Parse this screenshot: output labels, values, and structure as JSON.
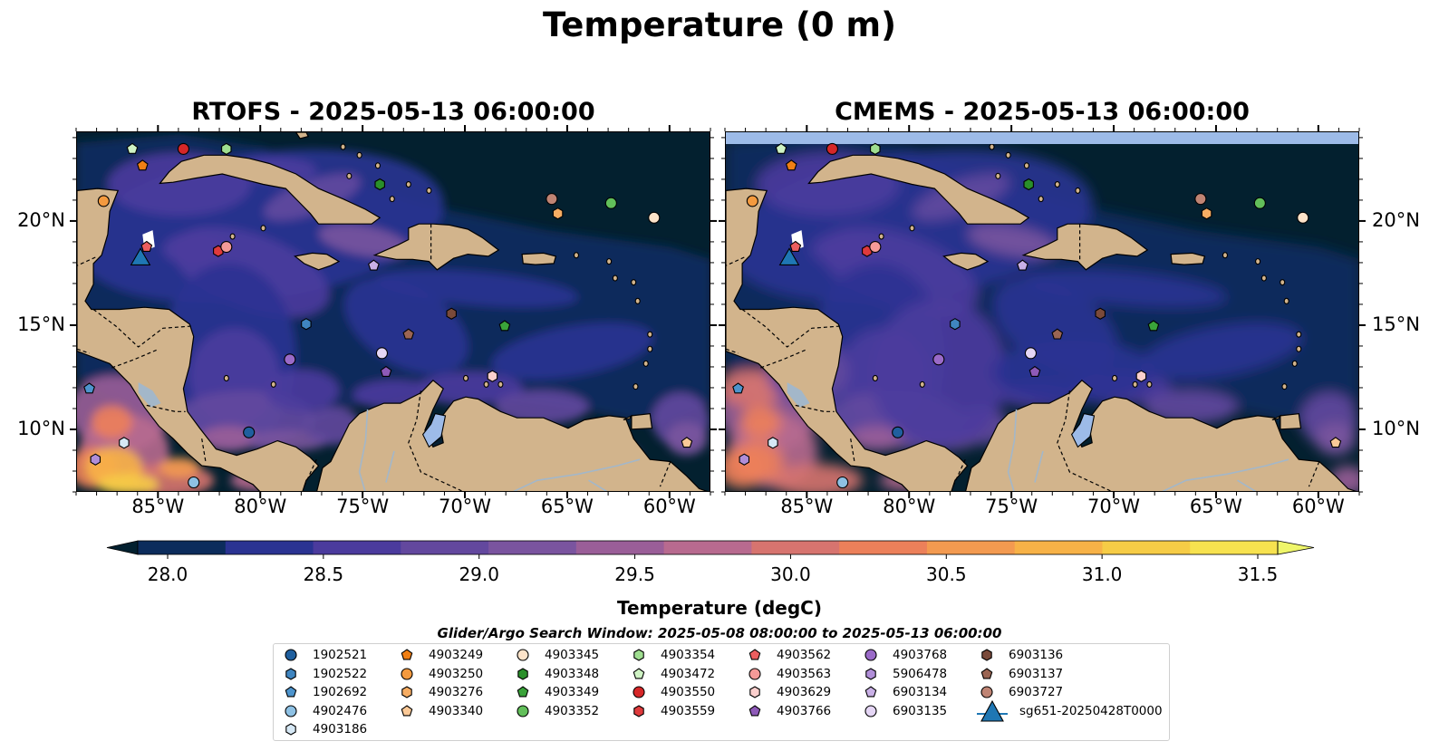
{
  "figure": {
    "title": "Temperature (0 m)",
    "panels": [
      {
        "title": "RTOFS - 2025-05-13 06:00:00"
      },
      {
        "title": "CMEMS - 2025-05-13 06:00:00"
      }
    ],
    "lon_ticks": [
      "85°W",
      "80°W",
      "75°W",
      "70°W",
      "65°W",
      "60°W"
    ],
    "lat_ticks": [
      "20°N",
      "15°N",
      "10°N"
    ],
    "extent": {
      "lon": [
        -89,
        -58
      ],
      "lat": [
        7,
        24.3
      ]
    },
    "colorbar": {
      "title": "Temperature (degC)",
      "ticks": [
        "28.0",
        "28.5",
        "29.0",
        "29.5",
        "30.0",
        "30.5",
        "31.0",
        "31.5"
      ],
      "range": [
        28.0,
        31.5
      ],
      "extend": "both",
      "colors": [
        "#03202f",
        "#0c2c5c",
        "#2a3392",
        "#4b3b9d",
        "#63489e",
        "#7a549f",
        "#9a5e98",
        "#b86a8f",
        "#d7746f",
        "#ec805a",
        "#f39a50",
        "#f7b247",
        "#f6cc46",
        "#f7e24f",
        "#eff66a"
      ]
    },
    "search_window": "Glider/Argo Search Window: 2025-05-08 08:00:00 to 2025-05-13 06:00:00",
    "colors": {
      "land": "#d2b48c",
      "lakes": "#9dbbe8",
      "rivers": "#a3b7c9",
      "deep": "#03202f"
    },
    "legend_items": [
      {
        "label": "1902521",
        "marker": "circle",
        "color": "#1f5f9e"
      },
      {
        "label": "1902522",
        "marker": "hexagon",
        "color": "#3f85c0"
      },
      {
        "label": "1902692",
        "marker": "pentagon",
        "color": "#4d94cd"
      },
      {
        "label": "4902476",
        "marker": "circle",
        "color": "#8ec1e4"
      },
      {
        "label": "4903186",
        "marker": "hexagon",
        "color": "#d6e8f5"
      },
      {
        "label": "4903249",
        "marker": "pentagon",
        "color": "#f07f14"
      },
      {
        "label": "4903250",
        "marker": "circle",
        "color": "#f49a3f"
      },
      {
        "label": "4903276",
        "marker": "hexagon",
        "color": "#f7ad63"
      },
      {
        "label": "4903340",
        "marker": "pentagon",
        "color": "#fbc997"
      },
      {
        "label": "4903345",
        "marker": "circle",
        "color": "#fde3c9"
      },
      {
        "label": "4903348",
        "marker": "hexagon",
        "color": "#2a8f2a"
      },
      {
        "label": "4903349",
        "marker": "pentagon",
        "color": "#3aa33a"
      },
      {
        "label": "4903352",
        "marker": "circle",
        "color": "#62bf5a"
      },
      {
        "label": "4903354",
        "marker": "hexagon",
        "color": "#9fde90"
      },
      {
        "label": "4903472",
        "marker": "pentagon",
        "color": "#cff3c4"
      },
      {
        "label": "4903550",
        "marker": "circle",
        "color": "#d62728"
      },
      {
        "label": "4903559",
        "marker": "hexagon",
        "color": "#df3a3c"
      },
      {
        "label": "4903562",
        "marker": "pentagon",
        "color": "#ec5e5f"
      },
      {
        "label": "4903563",
        "marker": "circle",
        "color": "#f59a98"
      },
      {
        "label": "4903629",
        "marker": "hexagon",
        "color": "#fbcfcd"
      },
      {
        "label": "4903766",
        "marker": "pentagon",
        "color": "#8e5ab8"
      },
      {
        "label": "4903768",
        "marker": "circle",
        "color": "#9a6ac8"
      },
      {
        "label": "5906478",
        "marker": "hexagon",
        "color": "#b08ed8"
      },
      {
        "label": "6903134",
        "marker": "pentagon",
        "color": "#c9b0e6"
      },
      {
        "label": "6903135",
        "marker": "circle",
        "color": "#e5d6f5"
      },
      {
        "label": "6903136",
        "marker": "hexagon",
        "color": "#7a4a3a"
      },
      {
        "label": "6903137",
        "marker": "pentagon",
        "color": "#9b6553"
      },
      {
        "label": "6903727",
        "marker": "circle",
        "color": "#bf8474"
      },
      {
        "label": "sg651-20250428T0000",
        "marker": "triangle",
        "color": "#1f77b4"
      }
    ],
    "floats": [
      {
        "id": "4903472",
        "lon": -86.3,
        "lat": 23.5
      },
      {
        "id": "4903550",
        "lon": -83.8,
        "lat": 23.5
      },
      {
        "id": "4903354",
        "lon": -81.7,
        "lat": 23.5
      },
      {
        "id": "4903249",
        "lon": -85.8,
        "lat": 22.7
      },
      {
        "id": "4903348",
        "lon": -74.2,
        "lat": 21.8
      },
      {
        "id": "6903727",
        "lon": -65.8,
        "lat": 21.1
      },
      {
        "id": "4903352",
        "lon": -62.9,
        "lat": 20.9
      },
      {
        "id": "4903250",
        "lon": -87.7,
        "lat": 21.0
      },
      {
        "id": "4903276",
        "lon": -65.5,
        "lat": 20.4
      },
      {
        "id": "4903345",
        "lon": -60.8,
        "lat": 20.2
      },
      {
        "id": "4903562",
        "lon": -85.6,
        "lat": 18.8
      },
      {
        "id": "4903559",
        "lon": -82.1,
        "lat": 18.6
      },
      {
        "id": "4903563",
        "lon": -81.7,
        "lat": 18.8
      },
      {
        "id": "6903134",
        "lon": -74.5,
        "lat": 17.9
      },
      {
        "id": "1902522",
        "lon": -77.8,
        "lat": 15.1
      },
      {
        "id": "6903136",
        "lon": -70.7,
        "lat": 15.6
      },
      {
        "id": "6903137",
        "lon": -72.8,
        "lat": 14.6
      },
      {
        "id": "4903349",
        "lon": -68.1,
        "lat": 15.0
      },
      {
        "id": "6903135",
        "lon": -74.1,
        "lat": 13.7
      },
      {
        "id": "4903768",
        "lon": -78.6,
        "lat": 13.4
      },
      {
        "id": "4903766",
        "lon": -73.9,
        "lat": 12.8
      },
      {
        "id": "4903629",
        "lon": -68.7,
        "lat": 12.6
      },
      {
        "id": "1902692",
        "lon": -88.4,
        "lat": 12.0
      },
      {
        "id": "1902521",
        "lon": -80.6,
        "lat": 9.9
      },
      {
        "id": "4903186",
        "lon": -86.7,
        "lat": 9.4
      },
      {
        "id": "4903340",
        "lon": -59.2,
        "lat": 9.4
      },
      {
        "id": "5906478",
        "lon": -88.1,
        "lat": 8.6
      },
      {
        "id": "4902476",
        "lon": -83.3,
        "lat": 7.5
      }
    ],
    "glider": {
      "id": "sg651-20250428T0000",
      "lon": -85.9,
      "lat": 18.3
    }
  }
}
